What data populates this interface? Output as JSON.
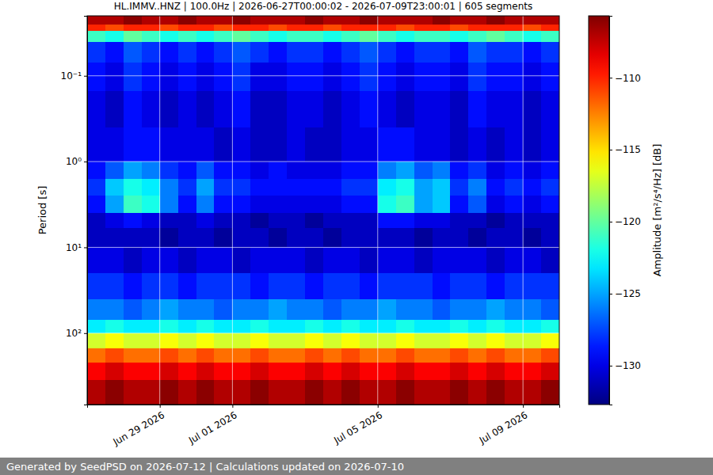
{
  "chart_data": {
    "type": "heatmap",
    "title": "HL.IMMV..HNZ | 100.0Hz | 2026-06-27T00:00:02 - 2026-07-09T23:00:01 | 605 segments",
    "y_label": "Period [s]",
    "footer": "Generated by SeedPSD on 2026-07-12 | Calculations updated on 2026-07-10",
    "log": "y",
    "grid": true,
    "xlim": [
      "2026-06-27T00:00",
      "2026-07-10T00:00"
    ],
    "xticks": [
      {
        "value": "2026-06-29T00:00",
        "label": "Jun 29 2026"
      },
      {
        "value": "2026-07-01T00:00",
        "label": "Jul 01 2026"
      },
      {
        "value": "2026-07-05T00:00",
        "label": "Jul 05 2026"
      },
      {
        "value": "2026-07-09T00:00",
        "label": "Jul 09 2026"
      }
    ],
    "ylim": [
      0.02,
      680
    ],
    "yticks": [
      {
        "value": 0.1,
        "label": "10⁻¹"
      },
      {
        "value": 1,
        "label": "10⁰"
      },
      {
        "value": 10,
        "label": "10¹"
      },
      {
        "value": 100,
        "label": "10²"
      }
    ],
    "x_edges": [
      "2026-06-27T00:00",
      "2026-06-27T12:00",
      "2026-06-28T00:00",
      "2026-06-28T12:00",
      "2026-06-29T00:00",
      "2026-06-29T12:00",
      "2026-06-30T00:00",
      "2026-06-30T12:00",
      "2026-07-01T00:00",
      "2026-07-01T12:00",
      "2026-07-02T00:00",
      "2026-07-02T12:00",
      "2026-07-03T00:00",
      "2026-07-03T12:00",
      "2026-07-04T00:00",
      "2026-07-04T12:00",
      "2026-07-05T00:00",
      "2026-07-05T12:00",
      "2026-07-06T00:00",
      "2026-07-06T12:00",
      "2026-07-07T00:00",
      "2026-07-07T12:00",
      "2026-07-08T00:00",
      "2026-07-08T12:00",
      "2026-07-09T00:00",
      "2026-07-09T12:00",
      "2026-07-10T00:00"
    ],
    "y_edges": [
      0.02,
      0.025,
      0.03,
      0.04,
      0.07,
      0.15,
      0.4,
      1,
      1.6,
      2.5,
      4,
      6,
      10,
      20,
      40,
      70,
      100,
      150,
      220,
      350,
      680
    ],
    "values": [
      [
        -107,
        -107,
        -106,
        -107,
        -107,
        -106,
        -107,
        -107,
        -106,
        -107,
        -107,
        -107,
        -106,
        -107,
        -107,
        -106,
        -107,
        -107,
        -107,
        -106,
        -107,
        -107,
        -106,
        -107,
        -107,
        -107
      ],
      [
        -110,
        -111,
        -110,
        -110,
        -111,
        -110,
        -110,
        -111,
        -110,
        -110,
        -111,
        -110,
        -110,
        -111,
        -110,
        -110,
        -110,
        -111,
        -110,
        -110,
        -111,
        -110,
        -110,
        -110,
        -111,
        -110
      ],
      [
        -121,
        -122,
        -120,
        -121,
        -122,
        -121,
        -122,
        -121,
        -120,
        -121,
        -122,
        -121,
        -121,
        -122,
        -121,
        -120,
        -121,
        -122,
        -121,
        -121,
        -122,
        -121,
        -120,
        -121,
        -122,
        -121
      ],
      [
        -128,
        -129,
        -127,
        -128,
        -129,
        -128,
        -129,
        -128,
        -127,
        -128,
        -129,
        -128,
        -128,
        -129,
        -128,
        -127,
        -128,
        -129,
        -128,
        -128,
        -129,
        -127,
        -128,
        -128,
        -129,
        -128
      ],
      [
        -129,
        -130,
        -128,
        -129,
        -130,
        -129,
        -130,
        -129,
        -128,
        -130,
        -130,
        -129,
        -129,
        -130,
        -129,
        -128,
        -129,
        -130,
        -129,
        -129,
        -130,
        -128,
        -129,
        -129,
        -130,
        -129
      ],
      [
        -130,
        -131,
        -129,
        -130,
        -131,
        -130,
        -131,
        -130,
        -129,
        -131,
        -131,
        -130,
        -130,
        -131,
        -130,
        -129,
        -130,
        -131,
        -130,
        -130,
        -131,
        -129,
        -130,
        -130,
        -131,
        -130
      ],
      [
        -130,
        -130,
        -129,
        -129,
        -130,
        -130,
        -130,
        -131,
        -130,
        -131,
        -131,
        -130,
        -131,
        -131,
        -130,
        -130,
        -129,
        -129,
        -130,
        -130,
        -131,
        -130,
        -131,
        -130,
        -131,
        -130
      ],
      [
        -129,
        -127,
        -125,
        -126,
        -128,
        -129,
        -127,
        -129,
        -129,
        -130,
        -129,
        -130,
        -130,
        -130,
        -129,
        -129,
        -126,
        -125,
        -127,
        -126,
        -129,
        -128,
        -130,
        -129,
        -130,
        -129
      ],
      [
        -128,
        -124,
        -122,
        -123,
        -126,
        -128,
        -125,
        -128,
        -128,
        -129,
        -129,
        -129,
        -129,
        -129,
        -128,
        -128,
        -123,
        -122,
        -125,
        -124,
        -128,
        -126,
        -129,
        -128,
        -129,
        -128
      ],
      [
        -129,
        -125,
        -121,
        -122,
        -126,
        -129,
        -126,
        -129,
        -129,
        -130,
        -130,
        -130,
        -130,
        -130,
        -129,
        -129,
        -122,
        -121,
        -125,
        -124,
        -129,
        -127,
        -130,
        -129,
        -130,
        -129
      ],
      [
        -131,
        -130,
        -129,
        -130,
        -131,
        -131,
        -130,
        -131,
        -131,
        -132,
        -131,
        -131,
        -132,
        -131,
        -131,
        -131,
        -129,
        -129,
        -130,
        -130,
        -131,
        -131,
        -132,
        -131,
        -131,
        -131
      ],
      [
        -131,
        -131,
        -131,
        -131,
        -132,
        -131,
        -131,
        -132,
        -131,
        -131,
        -132,
        -131,
        -131,
        -132,
        -131,
        -131,
        -131,
        -131,
        -132,
        -131,
        -131,
        -132,
        -131,
        -131,
        -132,
        -131
      ],
      [
        -130,
        -130,
        -131,
        -130,
        -130,
        -131,
        -130,
        -130,
        -131,
        -130,
        -130,
        -130,
        -131,
        -130,
        -130,
        -131,
        -130,
        -130,
        -131,
        -130,
        -130,
        -130,
        -131,
        -130,
        -130,
        -131
      ],
      [
        -128,
        -128,
        -129,
        -128,
        -128,
        -129,
        -128,
        -128,
        -128,
        -129,
        -128,
        -128,
        -129,
        -128,
        -128,
        -129,
        -128,
        -128,
        -128,
        -129,
        -128,
        -128,
        -129,
        -128,
        -128,
        -128
      ],
      [
        -126,
        -126,
        -127,
        -126,
        -125,
        -126,
        -126,
        -127,
        -126,
        -126,
        -125,
        -126,
        -126,
        -127,
        -126,
        -126,
        -125,
        -126,
        -126,
        -127,
        -126,
        -126,
        -125,
        -126,
        -126,
        -127
      ],
      [
        -123,
        -122,
        -123,
        -123,
        -122,
        -123,
        -122,
        -123,
        -123,
        -122,
        -123,
        -123,
        -122,
        -123,
        -122,
        -123,
        -123,
        -122,
        -123,
        -123,
        -122,
        -123,
        -122,
        -123,
        -123,
        -122
      ],
      [
        -117,
        -116,
        -117,
        -117,
        -116,
        -117,
        -116,
        -117,
        -117,
        -116,
        -117,
        -117,
        -116,
        -117,
        -116,
        -117,
        -117,
        -116,
        -117,
        -117,
        -116,
        -117,
        -116,
        -117,
        -117,
        -116
      ],
      [
        -112,
        -111,
        -112,
        -112,
        -111,
        -112,
        -111,
        -112,
        -112,
        -111,
        -112,
        -112,
        -111,
        -112,
        -111,
        -112,
        -112,
        -111,
        -112,
        -112,
        -111,
        -112,
        -111,
        -112,
        -112,
        -111
      ],
      [
        -109,
        -108,
        -109,
        -109,
        -108,
        -109,
        -108,
        -109,
        -109,
        -108,
        -109,
        -109,
        -108,
        -109,
        -108,
        -109,
        -109,
        -108,
        -109,
        -109,
        -108,
        -109,
        -108,
        -109,
        -109,
        -108
      ],
      [
        -107,
        -106,
        -107,
        -107,
        -106,
        -107,
        -106,
        -107,
        -107,
        -106,
        -107,
        -107,
        -106,
        -107,
        -106,
        -107,
        -107,
        -106,
        -107,
        -107,
        -106,
        -107,
        -106,
        -107,
        -107,
        -106
      ]
    ],
    "colorbar": {
      "label": "Amplitude [m²/s⁴/Hz] [dB]",
      "range": [
        -132.7,
        -105.7
      ],
      "ticks": [
        {
          "value": -110,
          "label": "−110"
        },
        {
          "value": -115,
          "label": "−115"
        },
        {
          "value": -120,
          "label": "−120"
        },
        {
          "value": -125,
          "label": "−125"
        },
        {
          "value": -130,
          "label": "−130"
        }
      ]
    }
  }
}
